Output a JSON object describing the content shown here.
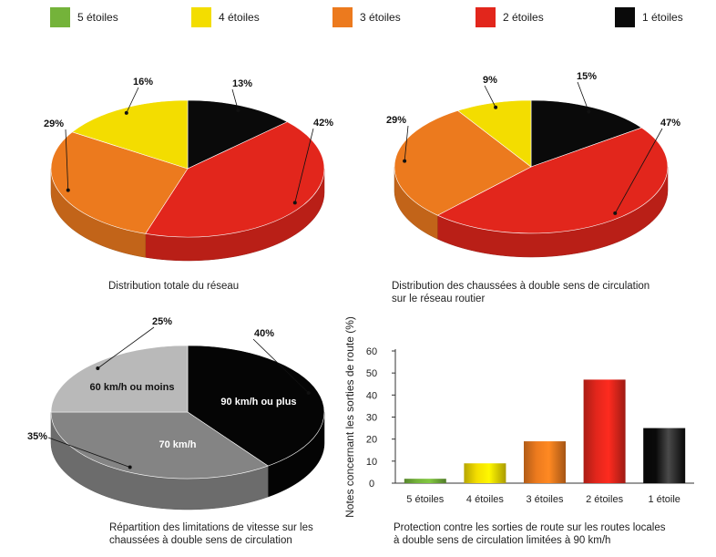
{
  "legend": [
    {
      "label": "5 étoiles",
      "color": "#74b33a"
    },
    {
      "label": "4 étoiles",
      "color": "#f3dd00"
    },
    {
      "label": "3 étoiles",
      "color": "#ec7a1e"
    },
    {
      "label": "2 étoiles",
      "color": "#e2261c"
    },
    {
      "label": "1 étoiles",
      "color": "#0a0a0a"
    }
  ],
  "captions": {
    "pie1": [
      "Distribution totale du réseau"
    ],
    "pie2": [
      "Distribution des chaussées à double sens de circulation",
      "sur le réseau routier"
    ],
    "pie3": [
      "Répartition des limitations de vitesse sur les",
      "chaussées à double sens de circulation"
    ],
    "bar": [
      "Protection contre les sorties de route sur les routes locales",
      "à double sens de circulation limitées à 90 km/h"
    ]
  },
  "chart_data": [
    {
      "type": "pie",
      "slices": [
        {
          "category": "1 étoiles",
          "value": 13,
          "label": "13%"
        },
        {
          "category": "2 étoiles",
          "value": 42,
          "label": "42%"
        },
        {
          "category": "3 étoiles",
          "value": 29,
          "label": "29%"
        },
        {
          "category": "4 étoiles",
          "value": 16,
          "label": "16%"
        }
      ]
    },
    {
      "type": "pie",
      "slices": [
        {
          "category": "1 étoiles",
          "value": 15,
          "label": "15%"
        },
        {
          "category": "2 étoiles",
          "value": 47,
          "label": "47%"
        },
        {
          "category": "3 étoiles",
          "value": 29,
          "label": "29%"
        },
        {
          "category": "4 étoiles",
          "value": 9,
          "label": "9%"
        }
      ]
    },
    {
      "type": "pie",
      "slices": [
        {
          "category": "90 km/h ou plus",
          "value": 40,
          "label": "40%",
          "color": "#050505"
        },
        {
          "category": "70 km/h",
          "value": 35,
          "label": "35%",
          "color": "#848484"
        },
        {
          "category": "60 km/h ou moins",
          "value": 25,
          "label": "25%",
          "color": "#b9b9b9"
        }
      ]
    },
    {
      "type": "bar",
      "categories": [
        "5 étoiles",
        "4 étoiles",
        "3 étoiles",
        "2 étoiles",
        "1 étoile"
      ],
      "values": [
        2,
        9,
        19,
        47,
        25
      ],
      "ylabel": "Notes concernant les sorties de route (%)",
      "ylim": [
        0,
        60
      ],
      "yticks": [
        "0",
        "10",
        "20",
        "30",
        "40",
        "50",
        "60"
      ],
      "grid": false
    }
  ]
}
